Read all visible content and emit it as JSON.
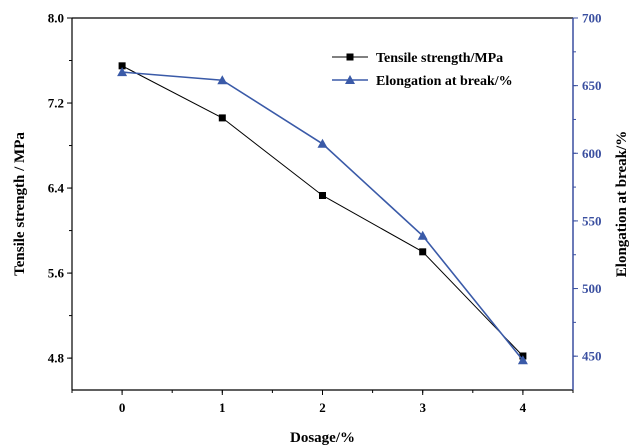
{
  "chart_data": {
    "type": "line",
    "xlabel": "Dosage/%",
    "x": [
      0,
      1,
      2,
      3,
      4
    ],
    "xlim": [
      -0.5,
      4.5
    ],
    "xticks": [
      "0",
      "1",
      "2",
      "3",
      "4"
    ],
    "y_left": {
      "label": "Tensile strength / MPa",
      "lim": [
        4.5,
        8.0
      ],
      "ticks": [
        "4.8",
        "5.6",
        "6.4",
        "7.2",
        "8.0"
      ],
      "color": "#000000"
    },
    "y_right": {
      "label": "Elongation at break/%",
      "lim": [
        425,
        700
      ],
      "ticks": [
        "450",
        "500",
        "550",
        "600",
        "650",
        "700"
      ],
      "color": "#3a4fa0"
    },
    "series": [
      {
        "name": "Tensile strength/MPa",
        "axis": "left",
        "marker": "square",
        "color": "#000000",
        "values": [
          7.55,
          7.06,
          6.33,
          5.8,
          4.82
        ]
      },
      {
        "name": "Elongation at break/%",
        "axis": "right",
        "marker": "triangle",
        "color": "#3a5aa8",
        "values": [
          660,
          654,
          607,
          539,
          447
        ]
      }
    ],
    "legend": "top-right",
    "grid": false
  }
}
